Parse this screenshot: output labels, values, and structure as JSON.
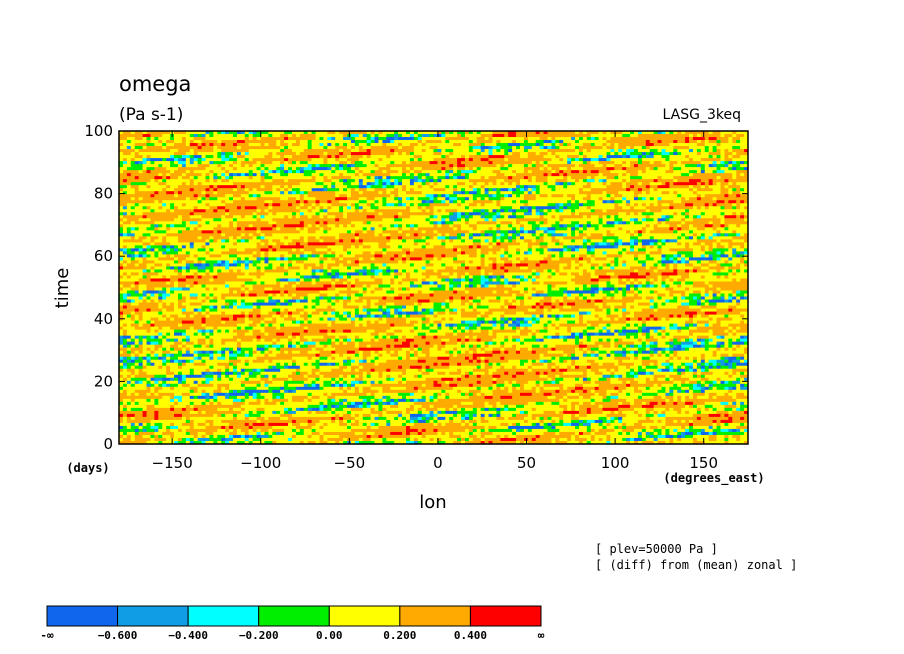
{
  "chart_data": {
    "type": "heatmap",
    "title": "omega",
    "units": "(Pa s-1)",
    "source_label": "LASG_3keq",
    "xlabel": "lon",
    "x_unit": "(degrees_east)",
    "ylabel": "time",
    "y_unit": "(days)",
    "xlim": [
      -180,
      175
    ],
    "ylim": [
      0,
      100
    ],
    "x_ticks": [
      -150,
      -100,
      -50,
      0,
      50,
      100,
      150
    ],
    "x_tick_labels": [
      "−150",
      "−100",
      "−50",
      "0",
      "50",
      "100",
      "150"
    ],
    "y_ticks": [
      0,
      20,
      40,
      60,
      80,
      100
    ],
    "y_tick_labels": [
      "0",
      "20",
      "40",
      "60",
      "80",
      "100"
    ],
    "notes": [
      "[ plev=50000 Pa ]",
      "[ (diff) from (mean) zonal ]"
    ],
    "levels": [
      "-∞",
      "−0.600",
      "−0.400",
      "−0.200",
      "0.00",
      "0.200",
      "0.400",
      "∞"
    ],
    "colors": [
      "#1166ee",
      "#119de5",
      "#00ffff",
      "#00ee00",
      "#ffff00",
      "#ffaa00",
      "#ff0000"
    ]
  }
}
